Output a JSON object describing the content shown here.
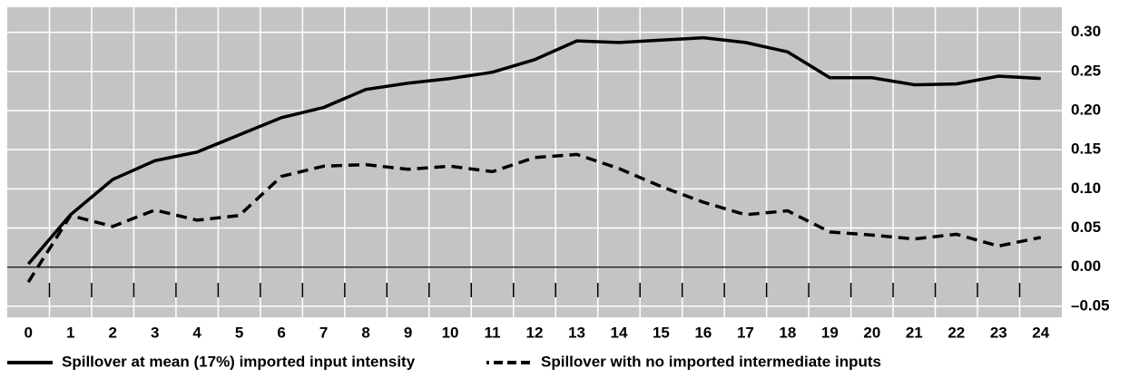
{
  "chart_data": {
    "type": "line",
    "x": [
      0,
      1,
      2,
      3,
      4,
      5,
      6,
      7,
      8,
      9,
      10,
      11,
      12,
      13,
      14,
      15,
      16,
      17,
      18,
      19,
      20,
      21,
      22,
      23,
      24
    ],
    "xlim": [
      -0.5,
      24.5
    ],
    "xticks": [
      0,
      1,
      2,
      3,
      4,
      5,
      6,
      7,
      8,
      9,
      10,
      11,
      12,
      13,
      14,
      15,
      16,
      17,
      18,
      19,
      20,
      21,
      22,
      23,
      24
    ],
    "ylim": [
      -0.064,
      0.332
    ],
    "yticks": [
      {
        "value": -0.05,
        "label": "–0.05"
      },
      {
        "value": 0,
        "label": "0.00"
      },
      {
        "value": 0.05,
        "label": "0.05"
      },
      {
        "value": 0.1,
        "label": "0.10"
      },
      {
        "value": 0.15,
        "label": "0.15"
      },
      {
        "value": 0.2,
        "label": "0.20"
      },
      {
        "value": 0.25,
        "label": "0.25"
      },
      {
        "value": 0.3,
        "label": "0.30"
      }
    ],
    "grid": true,
    "series": [
      {
        "name": "Spillover at mean (17%) imported input intensity",
        "color": "#000000",
        "line_style": "solid",
        "values": [
          0.004,
          0.067,
          0.112,
          0.136,
          0.147,
          0.169,
          0.191,
          0.204,
          0.227,
          0.235,
          0.241,
          0.249,
          0.265,
          0.289,
          0.287,
          0.29,
          0.293,
          0.287,
          0.275,
          0.242,
          0.242,
          0.233,
          0.234,
          0.244,
          0.241
        ]
      },
      {
        "name": "Spillover with no imported intermediate inputs",
        "color": "#000000",
        "line_style": "dashed",
        "values": [
          -0.019,
          0.066,
          0.052,
          0.073,
          0.06,
          0.066,
          0.116,
          0.129,
          0.131,
          0.125,
          0.129,
          0.122,
          0.14,
          0.144,
          0.126,
          0.103,
          0.083,
          0.067,
          0.072,
          0.045,
          0.041,
          0.036,
          0.042,
          0.027,
          0.038
        ]
      }
    ]
  }
}
